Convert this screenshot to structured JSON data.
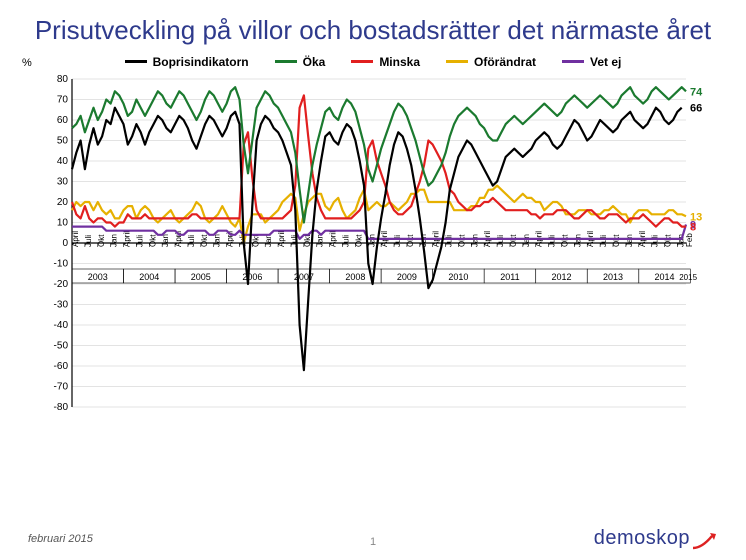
{
  "title": "Prisutveckling på villor och bostadsrätter det närmaste året",
  "footer_date": "februari 2015",
  "page_number": "1",
  "logo_text": "demoskop",
  "y_axis_label": "%",
  "chart": {
    "type": "line",
    "background_color": "#ffffff",
    "grid_color": "#c7c7c7",
    "axis_color": "#000000",
    "label_fontsize": 10,
    "title_fontsize": 26,
    "ylim": [
      -80,
      80
    ],
    "ytick_step": 10,
    "line_width": 2.2,
    "n_points": 144,
    "x_month_labels": [
      "April",
      "Juli",
      "Okt",
      "Jan"
    ],
    "x_years": [
      "2003",
      "2004",
      "2005",
      "2006",
      "2007",
      "2008",
      "2009",
      "2010",
      "2011",
      "2012",
      "2013",
      "2014",
      "2015"
    ],
    "x_last_label": "Feb",
    "end_labels": {
      "boprisindikatorn": "66",
      "oka": "74",
      "minska": "8",
      "oforandrat": "13",
      "vetej": "9"
    },
    "series": {
      "boprisindikatorn": {
        "label": "Boprisindikatorn",
        "color": "#000000",
        "values": [
          36,
          44,
          50,
          36,
          48,
          56,
          48,
          52,
          60,
          58,
          66,
          62,
          58,
          48,
          52,
          58,
          54,
          48,
          54,
          58,
          62,
          60,
          56,
          54,
          58,
          62,
          60,
          56,
          50,
          46,
          52,
          58,
          62,
          60,
          56,
          52,
          56,
          62,
          64,
          58,
          0,
          -20,
          18,
          50,
          58,
          62,
          60,
          56,
          54,
          50,
          44,
          38,
          16,
          -40,
          -62,
          -28,
          4,
          26,
          40,
          52,
          54,
          50,
          48,
          54,
          58,
          56,
          50,
          40,
          28,
          -10,
          -20,
          -2,
          12,
          24,
          38,
          48,
          54,
          52,
          46,
          38,
          26,
          12,
          -4,
          -22,
          -18,
          -10,
          -2,
          10,
          26,
          34,
          42,
          46,
          50,
          48,
          44,
          40,
          36,
          32,
          28,
          30,
          36,
          42,
          44,
          46,
          44,
          42,
          44,
          46,
          50,
          52,
          54,
          52,
          48,
          46,
          48,
          52,
          56,
          60,
          58,
          54,
          50,
          52,
          56,
          60,
          58,
          56,
          54,
          56,
          60,
          62,
          64,
          60,
          58,
          56,
          58,
          62,
          66,
          64,
          60,
          58,
          60,
          64,
          66
        ]
      },
      "oka": {
        "label": "Öka",
        "color": "#1b7a2f",
        "values": [
          56,
          58,
          62,
          54,
          60,
          66,
          60,
          64,
          70,
          68,
          74,
          72,
          68,
          62,
          64,
          70,
          66,
          62,
          66,
          70,
          74,
          72,
          68,
          66,
          70,
          74,
          72,
          68,
          64,
          60,
          64,
          70,
          74,
          72,
          68,
          64,
          68,
          74,
          76,
          70,
          48,
          34,
          50,
          66,
          70,
          74,
          72,
          68,
          66,
          62,
          58,
          54,
          44,
          26,
          10,
          24,
          38,
          48,
          56,
          64,
          66,
          62,
          60,
          66,
          70,
          68,
          64,
          56,
          48,
          36,
          30,
          38,
          46,
          52,
          58,
          64,
          68,
          66,
          62,
          56,
          50,
          42,
          34,
          28,
          30,
          34,
          38,
          44,
          52,
          58,
          62,
          64,
          66,
          64,
          62,
          58,
          56,
          52,
          50,
          50,
          54,
          58,
          60,
          62,
          60,
          58,
          60,
          62,
          64,
          66,
          68,
          66,
          64,
          62,
          64,
          68,
          70,
          72,
          70,
          68,
          66,
          68,
          70,
          72,
          70,
          68,
          66,
          68,
          72,
          74,
          76,
          72,
          70,
          68,
          70,
          74,
          76,
          74,
          72,
          70,
          72,
          74,
          76,
          74
        ]
      },
      "minska": {
        "label": "Minska",
        "color": "#e11f1f",
        "values": [
          20,
          14,
          12,
          18,
          12,
          10,
          12,
          12,
          10,
          10,
          8,
          10,
          10,
          14,
          12,
          12,
          12,
          14,
          12,
          12,
          12,
          12,
          12,
          12,
          12,
          12,
          12,
          12,
          14,
          14,
          12,
          12,
          12,
          12,
          12,
          12,
          12,
          12,
          12,
          12,
          48,
          54,
          32,
          16,
          12,
          12,
          12,
          12,
          12,
          12,
          14,
          16,
          28,
          66,
          72,
          52,
          34,
          22,
          16,
          12,
          12,
          12,
          12,
          12,
          12,
          12,
          14,
          16,
          20,
          46,
          50,
          40,
          34,
          28,
          20,
          16,
          14,
          14,
          16,
          18,
          24,
          30,
          38,
          50,
          48,
          44,
          40,
          34,
          26,
          24,
          20,
          18,
          16,
          16,
          18,
          18,
          20,
          20,
          22,
          20,
          18,
          16,
          16,
          16,
          16,
          16,
          16,
          14,
          14,
          12,
          14,
          14,
          14,
          16,
          16,
          16,
          14,
          12,
          12,
          14,
          16,
          16,
          14,
          12,
          12,
          14,
          14,
          14,
          12,
          10,
          12,
          12,
          12,
          14,
          12,
          10,
          8,
          10,
          12,
          12,
          10,
          10,
          8,
          8
        ]
      },
      "oforandrat": {
        "label": "Oförändrat",
        "color": "#e6b000",
        "values": [
          16,
          20,
          18,
          20,
          20,
          16,
          20,
          16,
          14,
          16,
          12,
          12,
          16,
          18,
          18,
          12,
          16,
          18,
          16,
          12,
          10,
          12,
          14,
          16,
          12,
          10,
          12,
          14,
          16,
          20,
          18,
          12,
          10,
          12,
          14,
          18,
          14,
          10,
          8,
          12,
          0,
          8,
          14,
          14,
          14,
          10,
          12,
          14,
          16,
          20,
          22,
          24,
          22,
          6,
          14,
          20,
          22,
          24,
          24,
          18,
          16,
          20,
          22,
          16,
          12,
          14,
          16,
          22,
          26,
          16,
          18,
          20,
          18,
          18,
          20,
          18,
          16,
          18,
          20,
          24,
          24,
          26,
          26,
          20,
          20,
          20,
          20,
          20,
          20,
          16,
          16,
          16,
          16,
          18,
          18,
          22,
          22,
          26,
          26,
          28,
          26,
          24,
          22,
          20,
          22,
          24,
          22,
          22,
          20,
          20,
          16,
          18,
          20,
          20,
          18,
          14,
          14,
          14,
          16,
          16,
          16,
          14,
          14,
          14,
          16,
          16,
          18,
          16,
          14,
          14,
          10,
          14,
          16,
          16,
          16,
          14,
          14,
          14,
          14,
          16,
          16,
          14,
          14,
          13
        ]
      },
      "vetej": {
        "label": "Vet ej",
        "color": "#7030a0",
        "values": [
          8,
          8,
          8,
          8,
          8,
          8,
          8,
          8,
          6,
          6,
          6,
          6,
          6,
          6,
          6,
          6,
          6,
          6,
          6,
          6,
          4,
          4,
          6,
          6,
          6,
          4,
          4,
          6,
          6,
          6,
          6,
          6,
          4,
          4,
          6,
          6,
          6,
          4,
          4,
          6,
          4,
          4,
          4,
          4,
          4,
          4,
          4,
          6,
          6,
          6,
          6,
          6,
          6,
          2,
          4,
          4,
          6,
          6,
          4,
          6,
          6,
          6,
          6,
          6,
          6,
          6,
          6,
          6,
          6,
          2,
          2,
          2,
          2,
          2,
          2,
          2,
          2,
          2,
          2,
          2,
          2,
          2,
          2,
          2,
          2,
          2,
          2,
          2,
          2,
          2,
          2,
          2,
          2,
          2,
          2,
          2,
          2,
          2,
          2,
          2,
          2,
          2,
          2,
          2,
          2,
          2,
          2,
          2,
          2,
          2,
          2,
          2,
          2,
          2,
          2,
          2,
          2,
          2,
          2,
          2,
          2,
          2,
          2,
          2,
          2,
          2,
          2,
          2,
          2,
          2,
          2,
          2,
          2,
          2,
          2,
          2,
          2,
          2,
          2,
          2,
          2,
          2,
          2,
          9
        ]
      }
    }
  }
}
